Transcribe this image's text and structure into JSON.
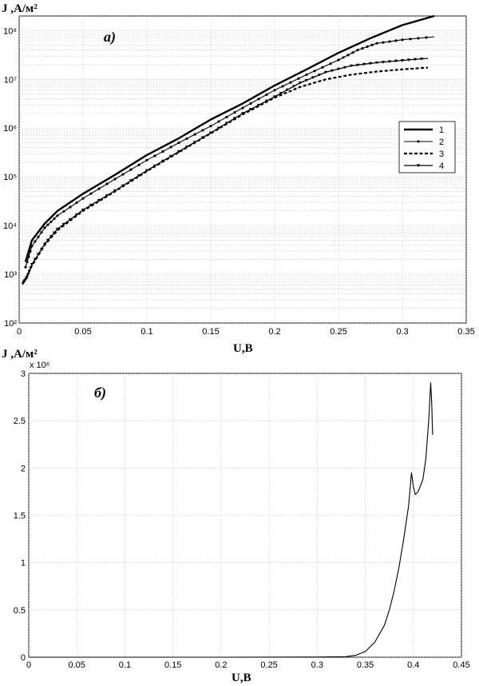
{
  "chart_data": [
    {
      "type": "line",
      "panel_label": "а)",
      "ylabel": "J ,А/м²",
      "xlabel": "U,В",
      "xlim": [
        0,
        0.35
      ],
      "ylim": [
        100,
        200000000
      ],
      "yscale": "log",
      "grid": true,
      "legend_position": "right",
      "x_ticks": [
        "0",
        "0.05",
        "0.1",
        "0.15",
        "0.2",
        "0.25",
        "0.3",
        "0.35"
      ],
      "y_ticks": [
        "10²",
        "10³",
        "10⁴",
        "10⁵",
        "10⁶",
        "10⁷",
        "10⁸"
      ],
      "series": [
        {
          "name": "1",
          "style": "solid-thick",
          "x": [
            0.005,
            0.01,
            0.02,
            0.03,
            0.05,
            0.075,
            0.1,
            0.125,
            0.15,
            0.175,
            0.2,
            0.225,
            0.25,
            0.275,
            0.3,
            0.325
          ],
          "y": [
            1800,
            5000,
            11000,
            20000,
            45000,
            110000,
            280000,
            620000,
            1500000,
            3200000,
            7500000,
            16000000,
            35000000,
            70000000,
            130000000,
            200000000
          ]
        },
        {
          "name": "2",
          "style": "solid-dot",
          "x": [
            0.005,
            0.01,
            0.02,
            0.03,
            0.05,
            0.075,
            0.1,
            0.125,
            0.15,
            0.175,
            0.2,
            0.225,
            0.25,
            0.265,
            0.28,
            0.3,
            0.325
          ],
          "y": [
            1400,
            3800,
            9000,
            16000,
            36000,
            90000,
            220000,
            500000,
            1100000,
            2600000,
            6000000,
            12500000,
            25000000,
            40000000,
            55000000,
            65000000,
            75000000
          ]
        },
        {
          "name": "3",
          "style": "dashed-thick",
          "x": [
            0.003,
            0.006,
            0.01,
            0.02,
            0.03,
            0.05,
            0.075,
            0.1,
            0.125,
            0.15,
            0.175,
            0.2,
            0.22,
            0.24,
            0.26,
            0.28,
            0.3,
            0.32
          ],
          "y": [
            700,
            900,
            1500,
            4000,
            8000,
            20000,
            50000,
            130000,
            320000,
            780000,
            1900000,
            4200000,
            7000000,
            10000000,
            12500000,
            14500000,
            16000000,
            17500000
          ]
        },
        {
          "name": "4",
          "style": "solid-triangle",
          "x": [
            0.003,
            0.006,
            0.01,
            0.02,
            0.03,
            0.05,
            0.075,
            0.1,
            0.125,
            0.15,
            0.175,
            0.2,
            0.22,
            0.24,
            0.26,
            0.28,
            0.3,
            0.32
          ],
          "y": [
            650,
            850,
            1600,
            4200,
            8500,
            21000,
            52000,
            135000,
            330000,
            800000,
            2000000,
            4400000,
            8500000,
            14000000,
            19000000,
            22000000,
            24500000,
            27000000
          ]
        }
      ]
    },
    {
      "type": "line",
      "panel_label": "б)",
      "ylabel": "J ,А/м²",
      "xlabel": "U,В",
      "scale_note": "x 10⁶",
      "xlim": [
        0,
        0.45
      ],
      "ylim": [
        0,
        3
      ],
      "grid": true,
      "x_ticks": [
        "0",
        "0.05",
        "0.1",
        "0.15",
        "0.2",
        "0.25",
        "0.3",
        "0.35",
        "0.4",
        "0.45"
      ],
      "y_ticks": [
        "0",
        "0.5",
        "1",
        "1.5",
        "2",
        "2.5",
        "3"
      ],
      "series": [
        {
          "x": [
            0,
            0.1,
            0.2,
            0.3,
            0.33,
            0.34,
            0.35,
            0.36,
            0.37,
            0.375,
            0.38,
            0.385,
            0.39,
            0.395,
            0.398,
            0.4,
            0.402,
            0.405,
            0.41,
            0.413,
            0.416,
            0.418,
            0.419,
            0.42
          ],
          "y": [
            0,
            0,
            0,
            0.002,
            0.006,
            0.02,
            0.06,
            0.16,
            0.34,
            0.5,
            0.7,
            0.95,
            1.25,
            1.6,
            1.95,
            1.8,
            1.72,
            1.75,
            1.88,
            2.1,
            2.5,
            2.9,
            2.7,
            2.35
          ]
        }
      ]
    }
  ]
}
